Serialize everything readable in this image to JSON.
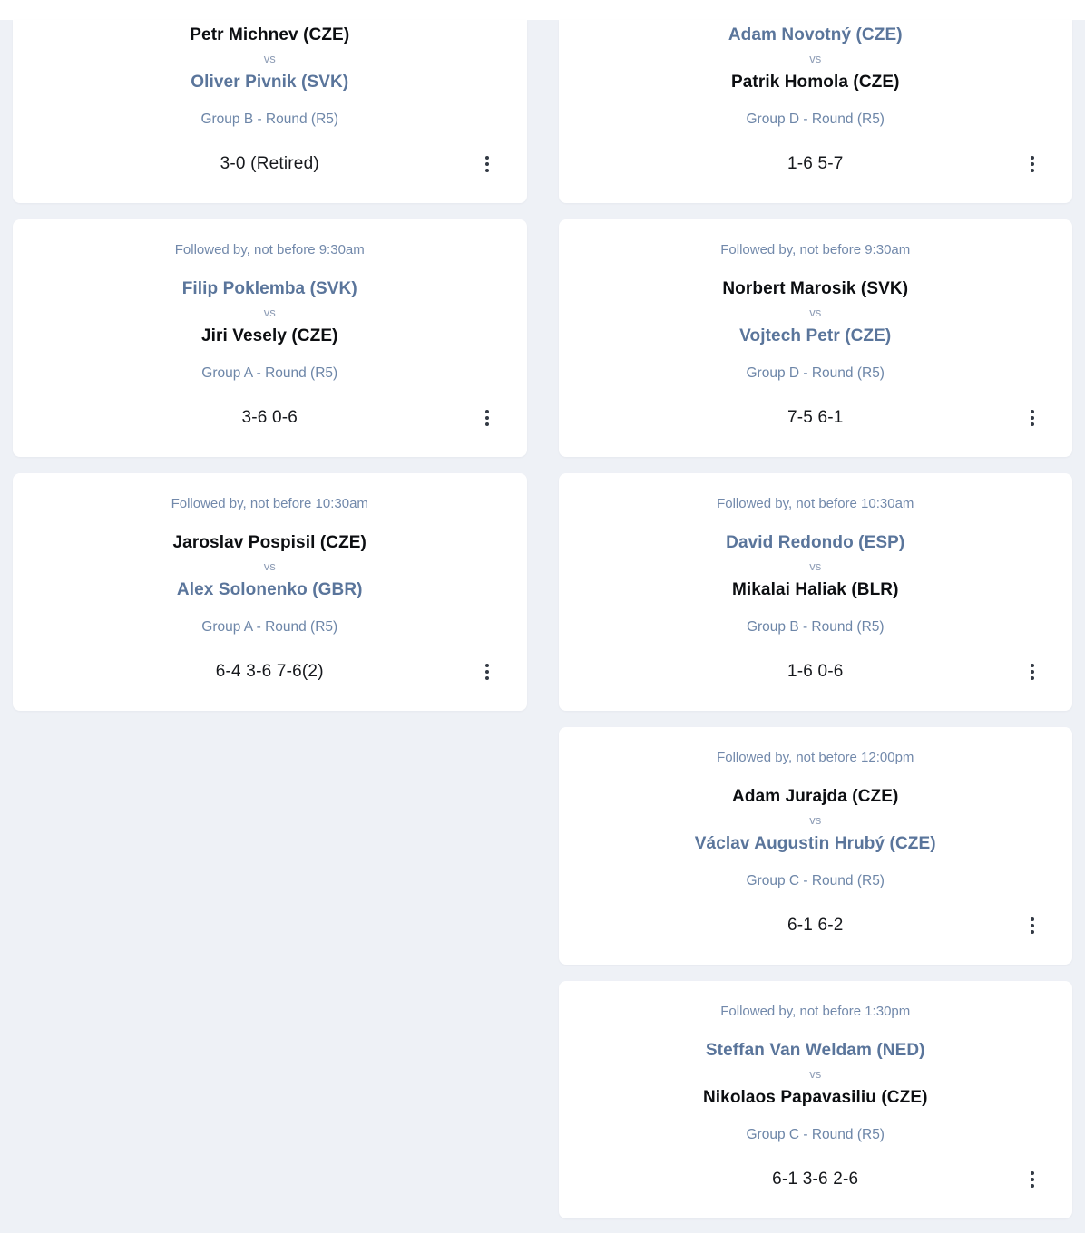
{
  "labels": {
    "vs": "vs"
  },
  "colors": {
    "page_background": "#eef1f6",
    "card_background": "#ffffff",
    "player_highlight_blue": "#5a759b",
    "player_default": "#0c0e11",
    "followed_by_text": "#7289ab",
    "group_text": "#6d86a8",
    "vs_text": "#8d9cb5",
    "score_text": "#16181c",
    "menu_dots": "#333a44"
  },
  "matches": {
    "left": [
      {
        "player1": {
          "name": "Petr Michnev (CZE)",
          "highlighted": false
        },
        "player2": {
          "name": "Oliver Pivnik (SVK)",
          "highlighted": true
        },
        "group": "Group B - Round (R5)",
        "score": "3-0 (Retired)"
      },
      {
        "followed_by": "Followed by, not before 9:30am",
        "player1": {
          "name": "Filip Poklemba (SVK)",
          "highlighted": true
        },
        "player2": {
          "name": "Jiri Vesely (CZE)",
          "highlighted": false
        },
        "group": "Group A - Round (R5)",
        "score": "3-6 0-6"
      },
      {
        "followed_by": "Followed by, not before 10:30am",
        "player1": {
          "name": "Jaroslav Pospisil (CZE)",
          "highlighted": false
        },
        "player2": {
          "name": "Alex Solonenko (GBR)",
          "highlighted": true
        },
        "group": "Group A - Round (R5)",
        "score": "6-4 3-6 7-6(2)"
      }
    ],
    "right": [
      {
        "player1": {
          "name": "Adam Novotný (CZE)",
          "highlighted": true
        },
        "player2": {
          "name": "Patrik Homola (CZE)",
          "highlighted": false
        },
        "group": "Group D - Round (R5)",
        "score": "1-6 5-7"
      },
      {
        "followed_by": "Followed by, not before 9:30am",
        "player1": {
          "name": "Norbert Marosik (SVK)",
          "highlighted": false
        },
        "player2": {
          "name": "Vojtech Petr (CZE)",
          "highlighted": true
        },
        "group": "Group D - Round (R5)",
        "score": "7-5 6-1"
      },
      {
        "followed_by": "Followed by, not before 10:30am",
        "player1": {
          "name": "David Redondo (ESP)",
          "highlighted": true
        },
        "player2": {
          "name": "Mikalai Haliak (BLR)",
          "highlighted": false
        },
        "group": "Group B - Round (R5)",
        "score": "1-6 0-6"
      },
      {
        "followed_by": "Followed by, not before 12:00pm",
        "player1": {
          "name": "Adam Jurajda (CZE)",
          "highlighted": false
        },
        "player2": {
          "name": "Václav Augustin Hrubý (CZE)",
          "highlighted": true
        },
        "group": "Group C - Round (R5)",
        "score": "6-1 6-2"
      },
      {
        "followed_by": "Followed by, not before 1:30pm",
        "player1": {
          "name": "Steffan Van Weldam (NED)",
          "highlighted": true
        },
        "player2": {
          "name": "Nikolaos Papavasiliu (CZE)",
          "highlighted": false
        },
        "group": "Group C - Round (R5)",
        "score": "6-1 3-6 2-6"
      }
    ]
  }
}
